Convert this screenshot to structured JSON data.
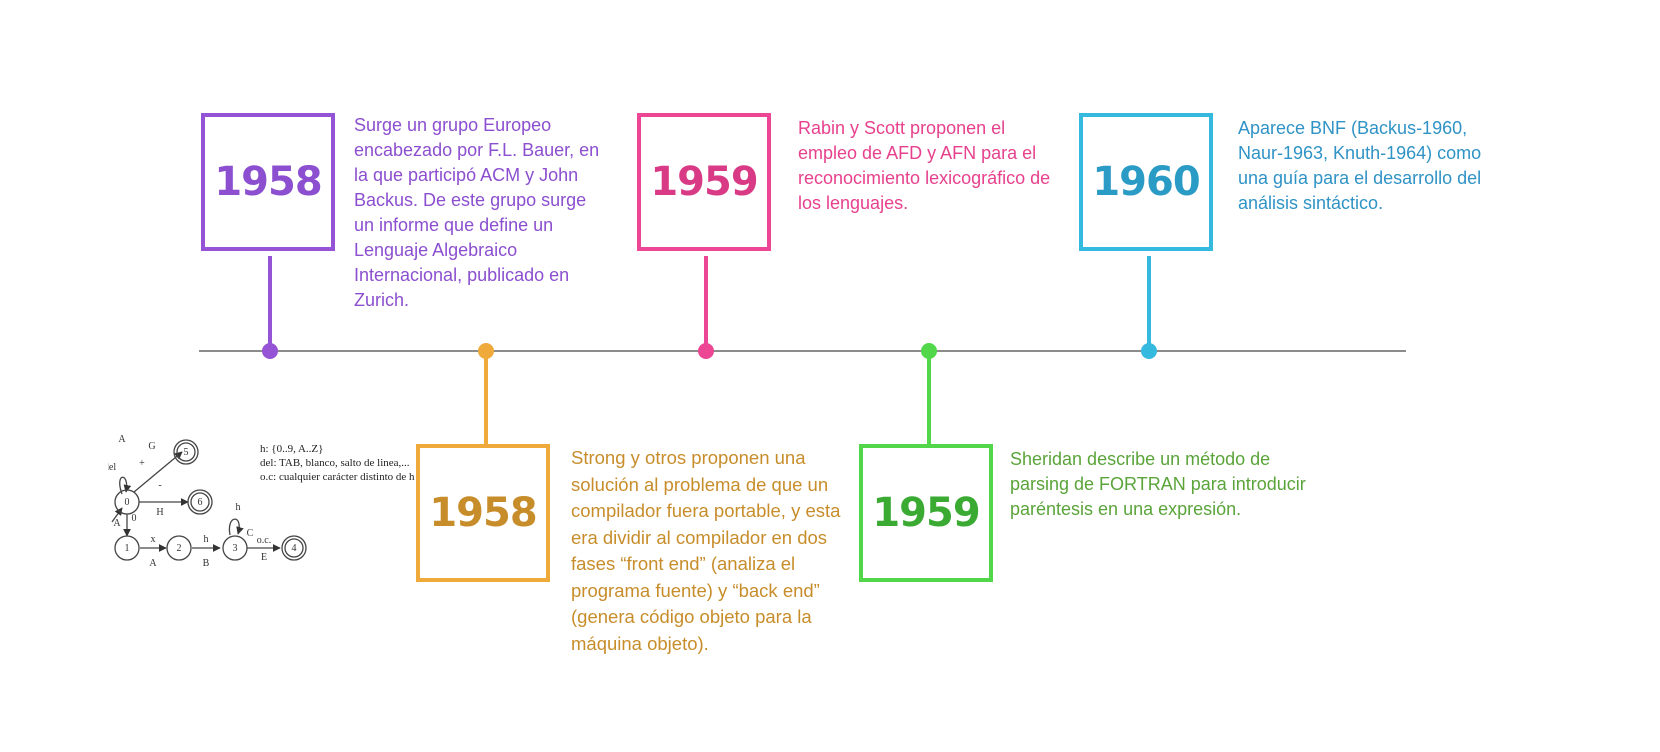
{
  "events": [
    {
      "year": "1958",
      "color": "#9553d6",
      "text_color": "#8b4fcf",
      "position": "top",
      "text": "Surge un grupo Europeo encabezado por F.L. Bauer, en la que participó ACM y John Backus. De este grupo surge un informe que define un Lenguaje Algebraico Internacional, publicado en Zurich."
    },
    {
      "year": "1958",
      "color": "#f0a93b",
      "text_color": "#c88d2b",
      "position": "bottom",
      "text": "Strong y otros proponen una solución al problema de que un compilador fuera portable, y esta era dividir al compilador en dos fases “front end” (analiza el programa fuente) y “back end” (genera código objeto para la máquina objeto)."
    },
    {
      "year": "1959",
      "color": "#ec4694",
      "text_color": "#e7418d",
      "position": "top",
      "text": "Rabin y Scott proponen el empleo de AFD y AFN para el reconocimiento lexicográfico de los lenguajes."
    },
    {
      "year": "1959",
      "color": "#52d64a",
      "text_color": "#5aa43a",
      "position": "bottom",
      "text": "Sheridan describe un método de parsing de FORTRAN para introducir paréntesis en una expresión."
    },
    {
      "year": "1960",
      "color": "#35b9df",
      "text_color": "#2f93c6",
      "position": "top",
      "text": "Aparece BNF (Backus-1960, Naur-1963, Knuth-1964) como una guía para el desarrollo del análisis sintáctico."
    }
  ],
  "automaton": {
    "legend": [
      "h: {0..9, A..Z}",
      "del: TAB, blanco, salto de linea,...",
      "o.c: cualquier carácter distinto de h"
    ],
    "states": [
      "0",
      "1",
      "2",
      "3",
      "4",
      "5",
      "6"
    ],
    "edge_labels": [
      "A",
      "del",
      "G",
      "+",
      "-",
      "H",
      "0",
      "A",
      "x",
      "A",
      "h",
      "B",
      "h",
      "C",
      "o.c.",
      "E"
    ]
  }
}
